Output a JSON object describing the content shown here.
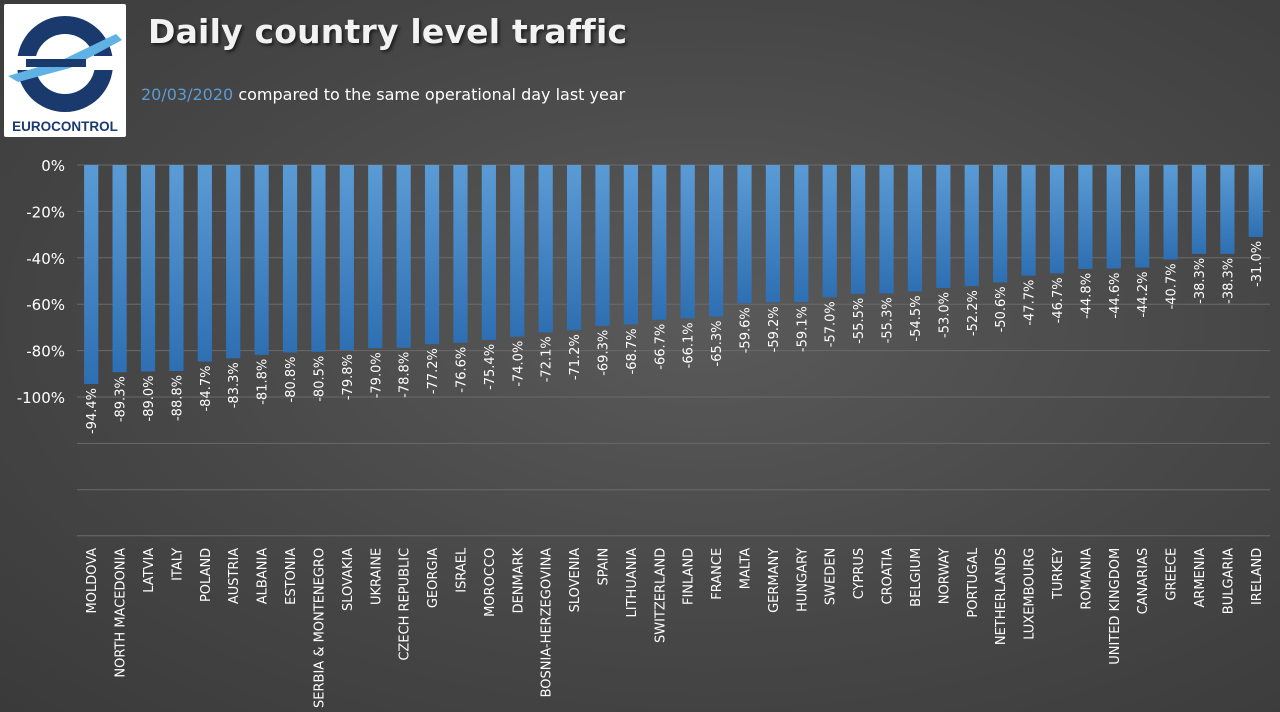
{
  "header": {
    "title": "Daily country level traffic",
    "subtitle_date": "20/03/2020",
    "subtitle_text": "compared to the same operational day last year",
    "logo_text": "EUROCONTROL"
  },
  "colors": {
    "bar_top": "#5b9bd5",
    "bar_bottom": "#2e6fb3",
    "date_accent": "#5b9bd5",
    "logo_blue": "#1a3a6e",
    "logo_light": "#5fb2e3"
  },
  "chart_data": {
    "type": "bar",
    "title": "Daily country level traffic",
    "xlabel": "",
    "ylabel": "",
    "ylim": [
      -140,
      0
    ],
    "yticks": [
      "0%",
      "-20%",
      "-40%",
      "-60%",
      "-80%",
      "-100%"
    ],
    "grid": true,
    "categories": [
      "MOLDOVA",
      "NORTH MACEDONIA",
      "LATVIA",
      "ITALY",
      "POLAND",
      "AUSTRIA",
      "ALBANIA",
      "ESTONIA",
      "SERBIA & MONTENEGRO",
      "SLOVAKIA",
      "UKRAINE",
      "CZECH REPUBLIC",
      "GEORGIA",
      "ISRAEL",
      "MOROCCO",
      "DENMARK",
      "BOSNIA-HERZEGOVINA",
      "SLOVENIA",
      "SPAIN",
      "LITHUANIA",
      "SWITZERLAND",
      "FINLAND",
      "FRANCE",
      "MALTA",
      "GERMANY",
      "HUNGARY",
      "SWEDEN",
      "CYPRUS",
      "CROATIA",
      "BELGIUM",
      "NORWAY",
      "PORTUGAL",
      "NETHERLANDS",
      "LUXEMBOURG",
      "TURKEY",
      "ROMANIA",
      "UNITED KINGDOM",
      "CANARIAS",
      "GREECE",
      "ARMENIA",
      "BULGARIA",
      "IRELAND"
    ],
    "values": [
      -94.4,
      -89.3,
      -89.0,
      -88.8,
      -84.7,
      -83.3,
      -81.8,
      -80.8,
      -80.5,
      -79.8,
      -79.0,
      -78.8,
      -77.2,
      -76.6,
      -75.4,
      -74.0,
      -72.1,
      -71.2,
      -69.3,
      -68.7,
      -66.7,
      -66.1,
      -65.3,
      -59.6,
      -59.2,
      -59.1,
      -57.0,
      -55.5,
      -55.3,
      -54.5,
      -53.0,
      -52.2,
      -50.6,
      -47.7,
      -46.7,
      -44.8,
      -44.6,
      -44.2,
      -40.7,
      -38.3,
      -38.3,
      -31.0
    ],
    "data_labels": [
      "-94.4%",
      "-89.3%",
      "-89.0%",
      "-88.8%",
      "-84.7%",
      "-83.3%",
      "-81.8%",
      "-80.8%",
      "-80.5%",
      "-79.8%",
      "-79.0%",
      "-78.8%",
      "-77.2%",
      "-76.6%",
      "-75.4%",
      "-74.0%",
      "-72.1%",
      "-71.2%",
      "-69.3%",
      "-68.7%",
      "-66.7%",
      "-66.1%",
      "-65.3%",
      "-59.6%",
      "-59.2%",
      "-59.1%",
      "-57.0%",
      "-55.5%",
      "-55.3%",
      "-54.5%",
      "-53.0%",
      "-52.2%",
      "-50.6%",
      "-47.7%",
      "-46.7%",
      "-44.8%",
      "-44.6%",
      "-44.2%",
      "-40.7%",
      "-38.3%",
      "-38.3%",
      "-31.0%"
    ]
  }
}
